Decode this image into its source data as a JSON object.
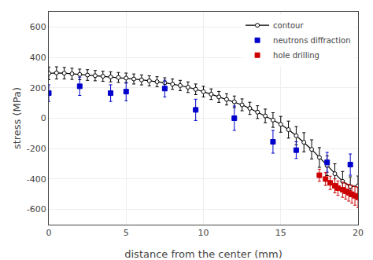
{
  "chart_data": {
    "type": "line",
    "xlabel": "distance from the center (mm)",
    "ylabel": "stress (MPa)",
    "xlim": [
      0,
      20
    ],
    "ylim": [
      -700,
      700
    ],
    "xticks": [
      0,
      5,
      10,
      15,
      20
    ],
    "yticks": [
      -600,
      -400,
      -200,
      0,
      200,
      400,
      600
    ],
    "grid": true,
    "legend": "upper right",
    "series": [
      {
        "name": "contour",
        "type": "line",
        "marker": "circle",
        "line_style": "solid",
        "color": "#000000",
        "x": [
          0.0,
          0.5,
          1.0,
          1.5,
          2.0,
          2.5,
          3.0,
          3.5,
          4.0,
          4.5,
          5.0,
          5.5,
          6.0,
          6.5,
          7.0,
          7.5,
          8.0,
          8.5,
          9.0,
          9.5,
          10.0,
          10.5,
          11.0,
          11.5,
          12.0,
          12.5,
          13.0,
          13.5,
          14.0,
          14.5,
          15.0,
          15.5,
          16.0,
          16.5,
          17.0,
          17.5,
          18.0,
          18.5,
          19.0,
          19.5,
          20.0
        ],
        "values": [
          295,
          298,
          296,
          292,
          288,
          284,
          280,
          276,
          272,
          268,
          264,
          258,
          252,
          246,
          240,
          233,
          224,
          215,
          204,
          190,
          175,
          158,
          140,
          124,
          108,
          88,
          65,
          40,
          15,
          -12,
          -40,
          -75,
          -115,
          -158,
          -205,
          -258,
          -312,
          -365,
          -415,
          -450,
          -445
        ],
        "errors": [
          42,
          40,
          38,
          37,
          35,
          35,
          34,
          33,
          33,
          33,
          33,
          33,
          33,
          33,
          33,
          33,
          34,
          34,
          35,
          35,
          35,
          35,
          36,
          37,
          38,
          39,
          40,
          42,
          45,
          48,
          52,
          56,
          60,
          63,
          63,
          65,
          65,
          65,
          65,
          65,
          65
        ]
      },
      {
        "name": "neutrons diffraction",
        "type": "scatter",
        "marker": "square",
        "color": "#0000cc",
        "x": [
          0.0,
          2.0,
          4.0,
          5.0,
          7.5,
          9.5,
          12.0,
          14.5,
          16.0,
          18.0,
          19.5
        ],
        "values": [
          165,
          210,
          165,
          175,
          195,
          55,
          0,
          -155,
          -210,
          -290,
          -305
        ],
        "errors": [
          55,
          60,
          55,
          60,
          55,
          70,
          80,
          75,
          55,
          65,
          70
        ]
      },
      {
        "name": "hole drilling",
        "type": "scatter",
        "marker": "square",
        "color": "#cc0000",
        "x": [
          17.5,
          17.9,
          18.2,
          18.5,
          18.7,
          19.0,
          19.2,
          19.4,
          19.6,
          19.8,
          20.0
        ],
        "values": [
          -375,
          -400,
          -425,
          -445,
          -460,
          -470,
          -480,
          -490,
          -500,
          -510,
          -520
        ],
        "errors": [
          40,
          42,
          44,
          46,
          48,
          50,
          52,
          55,
          58,
          62,
          68
        ]
      }
    ]
  }
}
